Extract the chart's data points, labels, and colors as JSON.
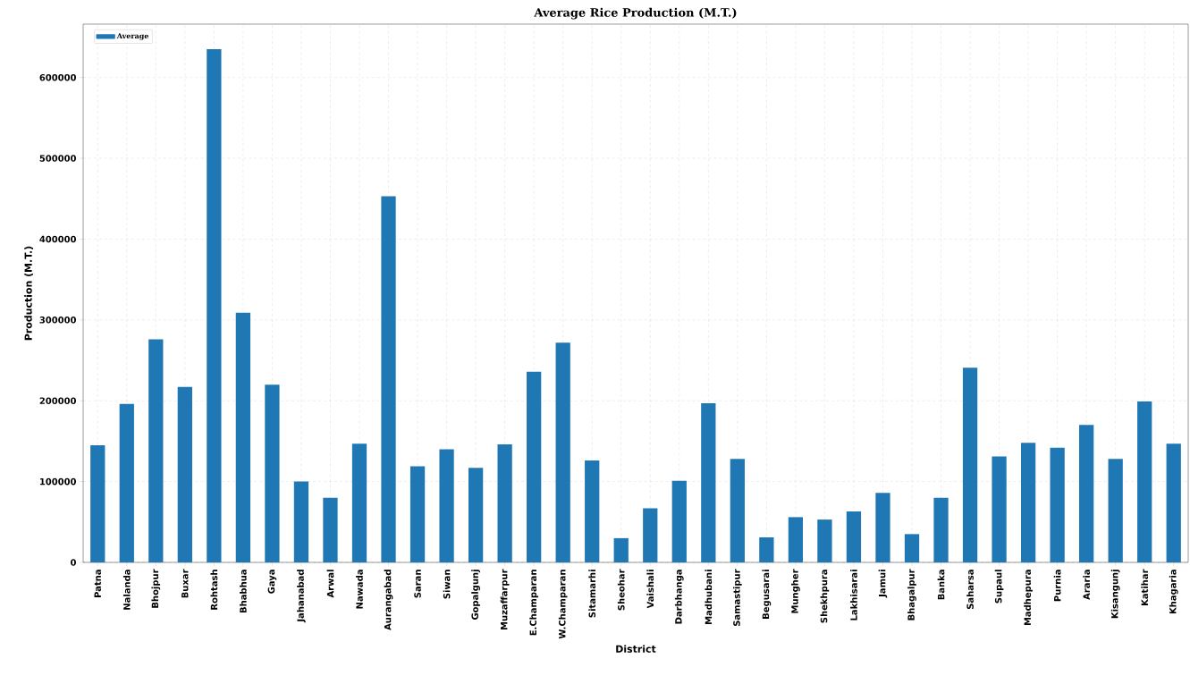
{
  "chart_data": {
    "type": "bar",
    "title": "Average Rice Production (M.T.)",
    "xlabel": "District",
    "ylabel": "Production (M.T.)",
    "categories": [
      "Patna",
      "Nalanda",
      "Bhojpur",
      "Buxar",
      "Rohtash",
      "Bhabhua",
      "Gaya",
      "Jahanabad",
      "Arwal",
      "Nawada",
      "Aurangabad",
      "Saran",
      "Siwan",
      "Gopalgunj",
      "Muzaffarpur",
      "E.Champaran",
      "W.Champaran",
      "Sitamarhi",
      "Sheohar",
      "Vaishali",
      "Darbhanga",
      "Madhubani",
      "Samastipur",
      "Begusarai",
      "Mungher",
      "Shekhpura",
      "Lakhisarai",
      "Jamui",
      "Bhagalpur",
      "Banka",
      "Saharsa",
      "Supaul",
      "Madhepura",
      "Purnia",
      "Araria",
      "Kisangunj",
      "Katihar",
      "Khagaria"
    ],
    "series": [
      {
        "name": "Average",
        "color": "#1f77b4",
        "values": [
          145000,
          196000,
          276000,
          217000,
          635000,
          309000,
          220000,
          100000,
          80000,
          147000,
          453000,
          119000,
          140000,
          117000,
          146000,
          236000,
          272000,
          126000,
          30000,
          67000,
          101000,
          197000,
          128000,
          31000,
          56000,
          53000,
          63000,
          86000,
          35000,
          80000,
          241000,
          131000,
          148000,
          142000,
          170000,
          128000,
          199000,
          147000
        ]
      }
    ],
    "ylim": [
      0,
      666000
    ],
    "yticks": [
      0,
      100000,
      200000,
      300000,
      400000,
      500000,
      600000
    ],
    "grid": true,
    "legend": "top left"
  }
}
